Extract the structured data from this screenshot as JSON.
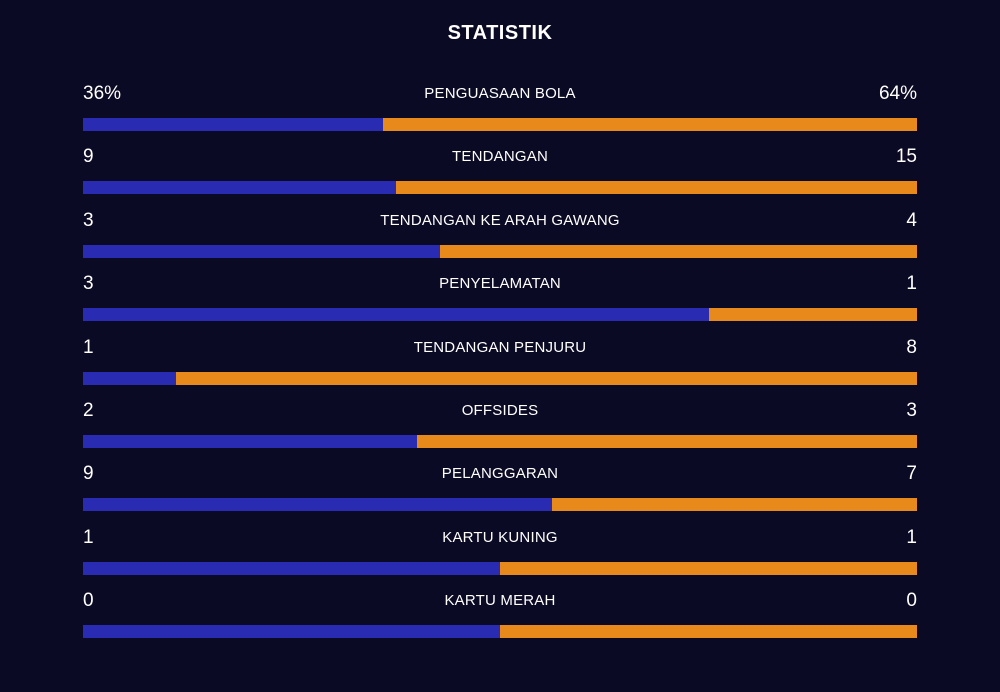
{
  "title": "STATISTIK",
  "colors": {
    "background": "#0b0a24",
    "home": "#2a2bb3",
    "away": "#e8891c",
    "text": "#ffffff"
  },
  "stats": [
    {
      "label": "PENGUASAAN BOLA",
      "left": "36%",
      "right": "64%",
      "home_share": 0.36
    },
    {
      "label": "TENDANGAN",
      "left": "9",
      "right": "15",
      "home_share": 0.375
    },
    {
      "label": "TENDANGAN KE ARAH GAWANG",
      "left": "3",
      "right": "4",
      "home_share": 0.4286
    },
    {
      "label": "PENYELAMATAN",
      "left": "3",
      "right": "1",
      "home_share": 0.75
    },
    {
      "label": "TENDANGAN PENJURU",
      "left": "1",
      "right": "8",
      "home_share": 0.1111
    },
    {
      "label": "OFFSIDES",
      "left": "2",
      "right": "3",
      "home_share": 0.4
    },
    {
      "label": "PELANGGARAN",
      "left": "9",
      "right": "7",
      "home_share": 0.5625
    },
    {
      "label": "KARTU KUNING",
      "left": "1",
      "right": "1",
      "home_share": 0.5
    },
    {
      "label": "KARTU MERAH",
      "left": "0",
      "right": "0",
      "home_share": 0.5
    }
  ]
}
